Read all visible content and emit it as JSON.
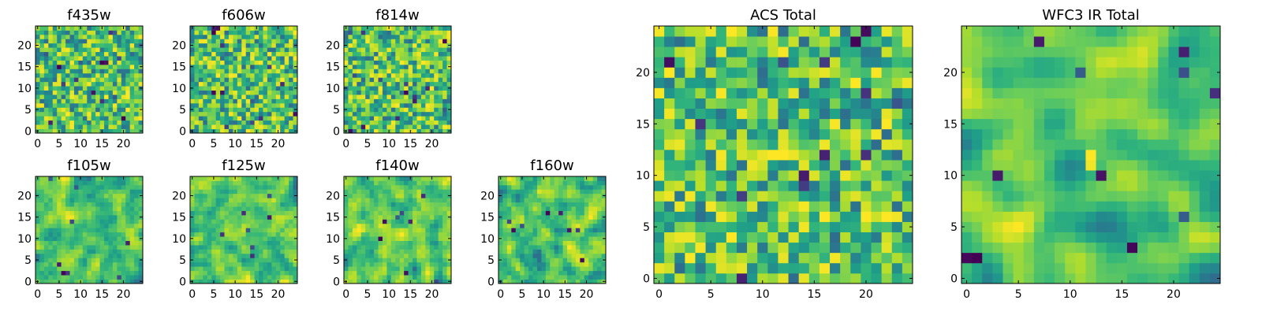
{
  "chart_data": [
    {
      "type": "heatmap",
      "title": "f435w",
      "grid_size": 25,
      "xticks": [
        0,
        5,
        10,
        15,
        20
      ],
      "yticks": [
        0,
        5,
        10,
        15,
        20
      ],
      "xlim": [
        -0.5,
        24.5
      ],
      "ylim": [
        -0.5,
        24.5
      ],
      "colormap": "viridis",
      "seed": 11,
      "smoothing": 0,
      "hotspots": [
        {
          "x": 15,
          "y": 16,
          "value": 0.0
        },
        {
          "x": 16,
          "y": 16,
          "value": 0.05
        }
      ]
    },
    {
      "type": "heatmap",
      "title": "f606w",
      "grid_size": 25,
      "xticks": [
        0,
        5,
        10,
        15,
        20
      ],
      "yticks": [
        0,
        5,
        10,
        15,
        20
      ],
      "xlim": [
        -0.5,
        24.5
      ],
      "ylim": [
        -0.5,
        24.5
      ],
      "colormap": "viridis",
      "seed": 23,
      "smoothing": 0,
      "hotspots": []
    },
    {
      "type": "heatmap",
      "title": "f814w",
      "grid_size": 25,
      "xticks": [
        0,
        5,
        10,
        15,
        20
      ],
      "yticks": [
        0,
        5,
        10,
        15,
        20
      ],
      "xlim": [
        -0.5,
        24.5
      ],
      "ylim": [
        -0.5,
        24.5
      ],
      "colormap": "viridis",
      "seed": 37,
      "smoothing": 0,
      "hotspots": [
        {
          "x": 12,
          "y": 12,
          "value": 0.95
        }
      ]
    },
    {
      "type": "heatmap",
      "title": "f105w",
      "grid_size": 25,
      "xticks": [
        0,
        5,
        10,
        15,
        20
      ],
      "yticks": [
        0,
        5,
        10,
        15,
        20
      ],
      "xlim": [
        -0.5,
        24.5
      ],
      "ylim": [
        -0.5,
        24.5
      ],
      "colormap": "viridis",
      "seed": 41,
      "smoothing": 1,
      "hotspots": []
    },
    {
      "type": "heatmap",
      "title": "f125w",
      "grid_size": 25,
      "xticks": [
        0,
        5,
        10,
        15,
        20
      ],
      "yticks": [
        0,
        5,
        10,
        15,
        20
      ],
      "xlim": [
        -0.5,
        24.5
      ],
      "ylim": [
        -0.5,
        24.5
      ],
      "colormap": "viridis",
      "seed": 53,
      "smoothing": 1,
      "hotspots": []
    },
    {
      "type": "heatmap",
      "title": "f140w",
      "grid_size": 25,
      "xticks": [
        0,
        5,
        10,
        15,
        20
      ],
      "yticks": [
        0,
        5,
        10,
        15,
        20
      ],
      "xlim": [
        -0.5,
        24.5
      ],
      "ylim": [
        -0.5,
        24.5
      ],
      "colormap": "viridis",
      "seed": 67,
      "smoothing": 1,
      "hotspots": []
    },
    {
      "type": "heatmap",
      "title": "f160w",
      "grid_size": 25,
      "xticks": [
        0,
        5,
        10,
        15,
        20
      ],
      "yticks": [
        0,
        5,
        10,
        15,
        20
      ],
      "xlim": [
        -0.5,
        24.5
      ],
      "ylim": [
        -0.5,
        24.5
      ],
      "colormap": "viridis",
      "seed": 79,
      "smoothing": 1,
      "hotspots": []
    },
    {
      "type": "heatmap",
      "title": "ACS Total",
      "grid_size": 25,
      "xticks": [
        0,
        5,
        10,
        15,
        20
      ],
      "yticks": [
        0,
        5,
        10,
        15,
        20
      ],
      "xlim": [
        -0.5,
        24.5
      ],
      "ylim": [
        -0.5,
        24.5
      ],
      "colormap": "viridis",
      "seed": 97,
      "smoothing": 0,
      "hotspots": [
        {
          "x": 11,
          "y": 12,
          "value": 1.0
        },
        {
          "x": 12,
          "y": 12,
          "value": 1.0
        },
        {
          "x": 13,
          "y": 12,
          "value": 0.97
        },
        {
          "x": 12,
          "y": 13,
          "value": 0.96
        }
      ]
    },
    {
      "type": "heatmap",
      "title": "WFC3 IR Total",
      "grid_size": 25,
      "xticks": [
        0,
        5,
        10,
        15,
        20
      ],
      "yticks": [
        0,
        5,
        10,
        15,
        20
      ],
      "xlim": [
        -0.5,
        24.5
      ],
      "ylim": [
        -0.5,
        24.5
      ],
      "colormap": "viridis",
      "seed": 131,
      "smoothing": 2,
      "hotspots": [
        {
          "x": 12,
          "y": 12,
          "value": 1.0
        },
        {
          "x": 12,
          "y": 11,
          "value": 0.98
        },
        {
          "x": 1,
          "y": 2,
          "value": 0.0
        },
        {
          "x": 0,
          "y": 2,
          "value": 0.02
        },
        {
          "x": 13,
          "y": 10,
          "value": 0.05
        }
      ]
    }
  ]
}
